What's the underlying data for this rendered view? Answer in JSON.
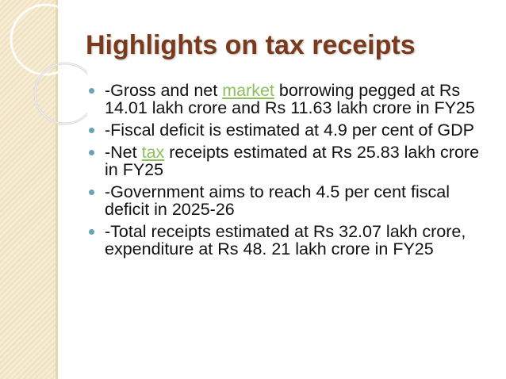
{
  "slide": {
    "title": "Highlights on tax receipts",
    "bullets": [
      {
        "lines": [
          "-Gross and net ",
          "market",
          " borrowing pegged at Rs 14.01 lakh crore and Rs 11.63 lakh crore in FY25"
        ]
      },
      {
        "text": "-Fiscal deficit is estimated at 4.9 per cent of GDP"
      },
      {
        "lines": [
          "-Net ",
          "tax",
          " receipts estimated at Rs 25.83 lakh crore in FY25"
        ]
      },
      {
        "text": "-Government aims to reach 4.5 per cent fiscal deficit in 2025-26"
      },
      {
        "text": "-Total receipts estimated at Rs 32.07 lakh crore, expenditure at Rs 48. 21 lakh crore in FY25"
      }
    ]
  },
  "colors": {
    "title": "#7a3b1d",
    "link": "#8cc05a",
    "bullet": "#6aa2b6",
    "panel": "#f6ecd3"
  }
}
